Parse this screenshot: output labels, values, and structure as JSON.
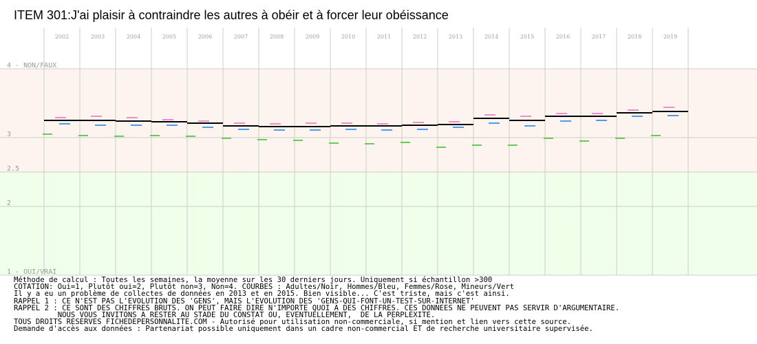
{
  "title": "ITEM 301:J'ai plaisir à contraindre les autres à obéir et à forcer leur obéissance",
  "chart_data": {
    "type": "line",
    "title": "ITEM 301:J'ai plaisir à contraindre les autres à obéir et à forcer leur obéissance",
    "categories": [
      "2002",
      "2003",
      "2004",
      "2005",
      "2006",
      "2007",
      "2008",
      "2009",
      "2010",
      "2011",
      "2012",
      "2013",
      "2014",
      "2015",
      "2016",
      "2017",
      "2018",
      "2019"
    ],
    "ylim": [
      1,
      4
    ],
    "y_ticks": [
      {
        "value": 4,
        "label": "4 - NON/FAUX"
      },
      {
        "value": 3,
        "label": "3"
      },
      {
        "value": 2.5,
        "label": "2.5"
      },
      {
        "value": 2,
        "label": "2"
      },
      {
        "value": 1,
        "label": "1 - OUI/VRAI"
      }
    ],
    "bands": [
      {
        "from": 2.5,
        "to": 4,
        "color": "#fdf3ef"
      },
      {
        "from": 1,
        "to": 2.5,
        "color": "#efffe9"
      }
    ],
    "grid": true,
    "series": [
      {
        "name": "Adultes",
        "color": "#000000",
        "values": [
          3.25,
          3.25,
          3.24,
          3.23,
          3.21,
          3.17,
          3.16,
          3.16,
          3.17,
          3.17,
          3.18,
          3.19,
          3.28,
          3.25,
          3.31,
          3.31,
          3.36,
          3.38
        ]
      },
      {
        "name": "Hommes",
        "color": "#4f9be8",
        "values": [
          3.2,
          3.18,
          3.18,
          3.18,
          3.15,
          3.12,
          3.11,
          3.11,
          3.12,
          3.11,
          3.12,
          3.15,
          3.21,
          3.17,
          3.24,
          3.25,
          3.31,
          3.32
        ]
      },
      {
        "name": "Femmes",
        "color": "#e98fd0",
        "values": [
          3.29,
          3.31,
          3.29,
          3.26,
          3.24,
          3.21,
          3.2,
          3.21,
          3.21,
          3.2,
          3.22,
          3.23,
          3.33,
          3.31,
          3.35,
          3.35,
          3.4,
          3.44
        ]
      },
      {
        "name": "Mineurs",
        "color": "#66cc55",
        "values": [
          3.05,
          3.03,
          3.02,
          3.03,
          3.02,
          2.99,
          2.97,
          2.96,
          2.92,
          2.91,
          2.93,
          2.86,
          2.89,
          2.89,
          2.99,
          2.95,
          2.99,
          3.03
        ]
      }
    ]
  },
  "notes": [
    "Méthode de calcul : Toutes les semaines, la moyenne sur les 30 derniers jours. Uniquement si échantillon >300",
    "COTATION: Oui=1, Plutôt oui=2, Plutôt non=3, Non=4. COURBES : Adultes/Noir, Hommes/Bleu, Femmes/Rose, Mineurs/Vert",
    "Il y a eu un problème de collectes de données en 2013 et en 2015. Bien visible... C'est triste, mais c'est ainsi.",
    "RAPPEL 1 : CE N'EST PAS L'EVOLUTION DES 'GENS', MAIS L'EVOLUTION DES 'GENS-QUI-FONT-UN-TEST-SUR-INTERNET'",
    "RAPPEL 2 : CE SONT DES CHIFFRES BRUTS. ON PEUT FAIRE DIRE N'IMPORTE QUOI A DES CHIFFRES. CES DONNEES NE PEUVENT PAS SERVIR D'ARGUMENTAIRE.",
    "          NOUS VOUS INVITONS A RESTER AU STADE DU CONSTAT OU, EVENTUELLEMENT,  DE LA PERPLEXITE.",
    "TOUS DROITS RESERVES FICHEDEPERSONNALITE.COM - Autorisé pour utilisation non-commerciale, si mention et lien vers cette source.",
    "Demande d'accès aux données : Partenariat possible uniquement dans un cadre non-commercial ET de recherche universitaire supervisée."
  ]
}
